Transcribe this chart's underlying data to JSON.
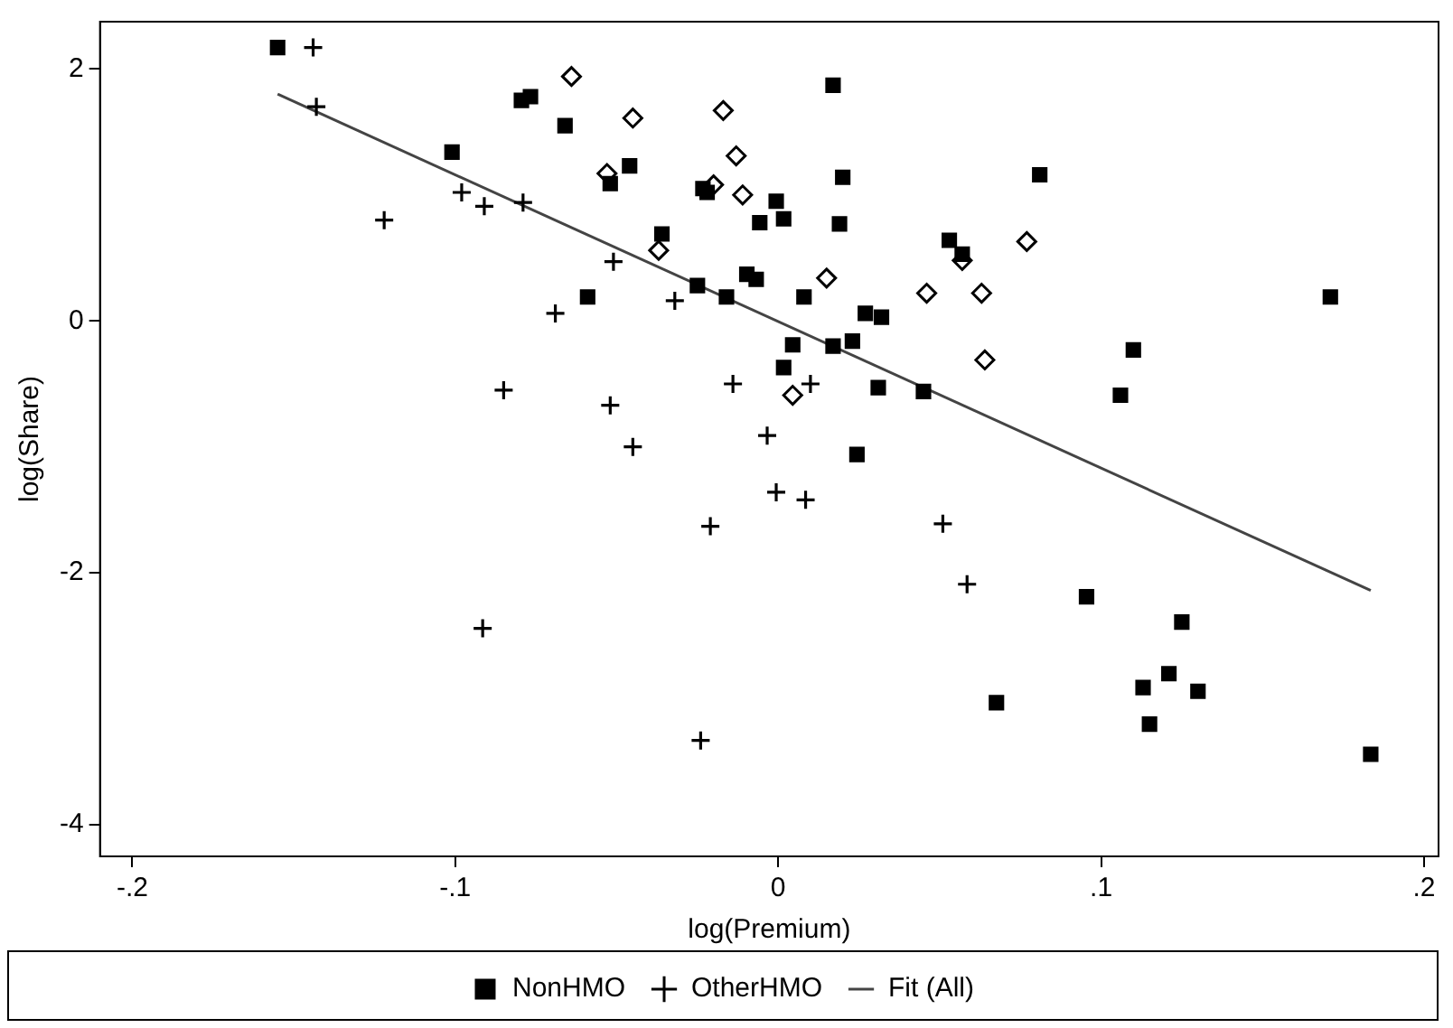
{
  "chart_data": {
    "type": "scatter",
    "xlabel": "log(Premium)",
    "ylabel": "log(Share)",
    "xlim": [
      -0.21,
      0.2045
    ],
    "ylim": [
      -4.25,
      2.375
    ],
    "xticks": [
      {
        "value": -0.2,
        "label": "-.2"
      },
      {
        "value": -0.1,
        "label": "-.1"
      },
      0,
      {
        "value": 0.1,
        "label": ".1"
      },
      {
        "value": 0.2,
        "label": ".2"
      }
    ],
    "yticks": [
      -4,
      -2,
      0,
      2
    ],
    "grid": false,
    "legend": "bottom",
    "series": [
      {
        "name": "NonHMO",
        "color": "#000000",
        "marker": "square",
        "x": [
          -0.155,
          -0.0795,
          -0.0767,
          -0.066,
          -0.101,
          -0.046,
          -0.052,
          -0.059,
          0.017,
          0.02,
          -0.0233,
          -0.022,
          -0.0006,
          -0.0057,
          0.0017,
          0.019,
          -0.036,
          -0.025,
          -0.016,
          -0.0097,
          -0.0068,
          0.008,
          0.027,
          0.032,
          0.023,
          0.017,
          0.0045,
          0.0017,
          0.031,
          0.045,
          0.053,
          0.057,
          0.081,
          0.0244,
          0.11,
          0.106,
          0.171,
          0.0955,
          0.125,
          0.121,
          0.113,
          0.13,
          0.115,
          0.0676,
          0.1835
        ],
        "values": [
          2.17,
          1.75,
          1.78,
          1.55,
          1.34,
          1.23,
          1.09,
          0.19,
          1.87,
          1.14,
          1.05,
          1.02,
          0.95,
          0.78,
          0.81,
          0.77,
          0.69,
          0.28,
          0.19,
          0.37,
          0.33,
          0.19,
          0.06,
          0.03,
          -0.16,
          -0.2,
          -0.19,
          -0.37,
          -0.53,
          -0.56,
          0.64,
          0.53,
          1.16,
          -1.06,
          -0.23,
          -0.59,
          0.19,
          -2.19,
          -2.39,
          -2.8,
          -2.91,
          -2.94,
          -3.2,
          -3.03,
          -3.44
        ]
      },
      {
        "color": "#000000",
        "marker": "diamond",
        "x": [
          -0.064,
          -0.045,
          -0.053,
          -0.017,
          -0.013,
          -0.02,
          -0.011,
          -0.037,
          0.015,
          0.046,
          0.063,
          0.057,
          0.077,
          0.064,
          0.0045
        ],
        "values": [
          1.94,
          1.61,
          1.17,
          1.67,
          1.31,
          1.08,
          1.0,
          0.56,
          0.34,
          0.22,
          0.22,
          0.48,
          0.63,
          -0.31,
          -0.59
        ]
      },
      {
        "name": "OtherHMO",
        "color": "#000000",
        "marker": "cross",
        "x": [
          -0.144,
          -0.143,
          -0.122,
          -0.098,
          -0.091,
          -0.079,
          -0.051,
          -0.069,
          -0.085,
          -0.032,
          -0.014,
          0.01,
          -0.052,
          -0.045,
          -0.0034,
          -0.0006,
          0.0085,
          -0.021,
          -0.0915,
          -0.024,
          0.051,
          0.0585
        ],
        "values": [
          2.17,
          1.7,
          0.8,
          1.02,
          0.91,
          0.94,
          0.47,
          0.06,
          -0.55,
          0.16,
          -0.5,
          -0.5,
          -0.67,
          -1.0,
          -0.91,
          -1.36,
          -1.42,
          -1.63,
          -2.44,
          -3.33,
          -1.61,
          -2.09
        ]
      },
      {
        "name": "Fit (All)",
        "type": "line",
        "color": "#444444",
        "marker": "none",
        "line_style": "solid",
        "x": [
          -0.155,
          0.1835
        ],
        "values": [
          1.8,
          -2.14
        ]
      }
    ]
  }
}
